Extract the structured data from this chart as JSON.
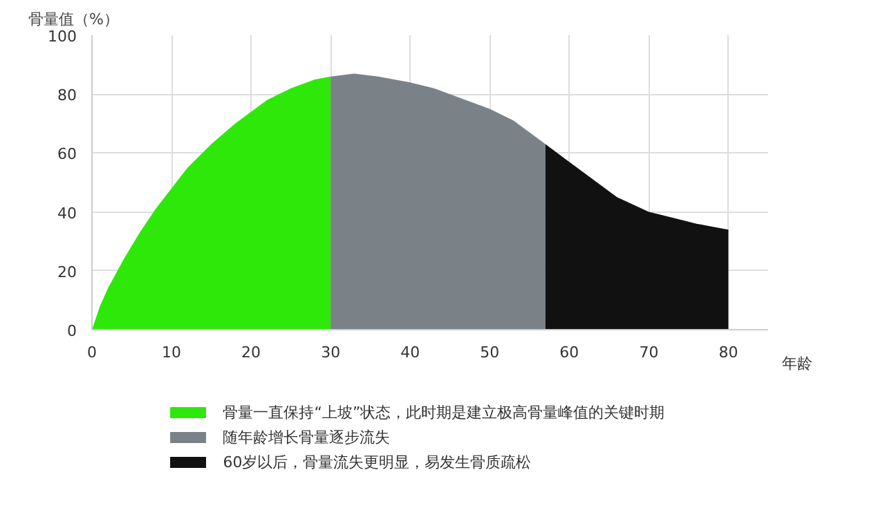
{
  "chart_data": {
    "type": "area",
    "ylabel": "骨量值（%）",
    "xlabel": "年龄",
    "xlim": [
      0,
      85
    ],
    "ylim": [
      0,
      100
    ],
    "xticks": [
      0,
      10,
      20,
      30,
      40,
      50,
      60,
      70,
      80
    ],
    "yticks": [
      0,
      20,
      40,
      60,
      80,
      100
    ],
    "grid": true,
    "legend": "bottom",
    "series": [
      {
        "name": "骨量一直保持“上坡”状态，此时期是建立极高骨量峰值的关键时期",
        "color": "#2ee80a",
        "x": [
          0,
          1,
          2,
          4,
          6,
          8,
          10,
          12,
          15,
          18,
          20,
          22,
          25,
          28,
          30
        ],
        "values": [
          0,
          8,
          14,
          24,
          33,
          41,
          48,
          55,
          63,
          70,
          74,
          78,
          82,
          85,
          86
        ]
      },
      {
        "name": "随年龄增长骨量逐步流失",
        "color": "#7b8287",
        "x": [
          30,
          33,
          36,
          40,
          43,
          46,
          50,
          53,
          55,
          57
        ],
        "values": [
          86,
          87,
          86,
          84,
          82,
          79,
          75,
          71,
          67,
          63
        ]
      },
      {
        "name": "60岁以后，骨量流失更明显，易发生骨质疏松",
        "color": "#111111",
        "x": [
          57,
          60,
          63,
          66,
          70,
          73,
          76,
          78,
          80
        ],
        "values": [
          63,
          57,
          51,
          45,
          40,
          38,
          36,
          35,
          34
        ]
      }
    ]
  }
}
